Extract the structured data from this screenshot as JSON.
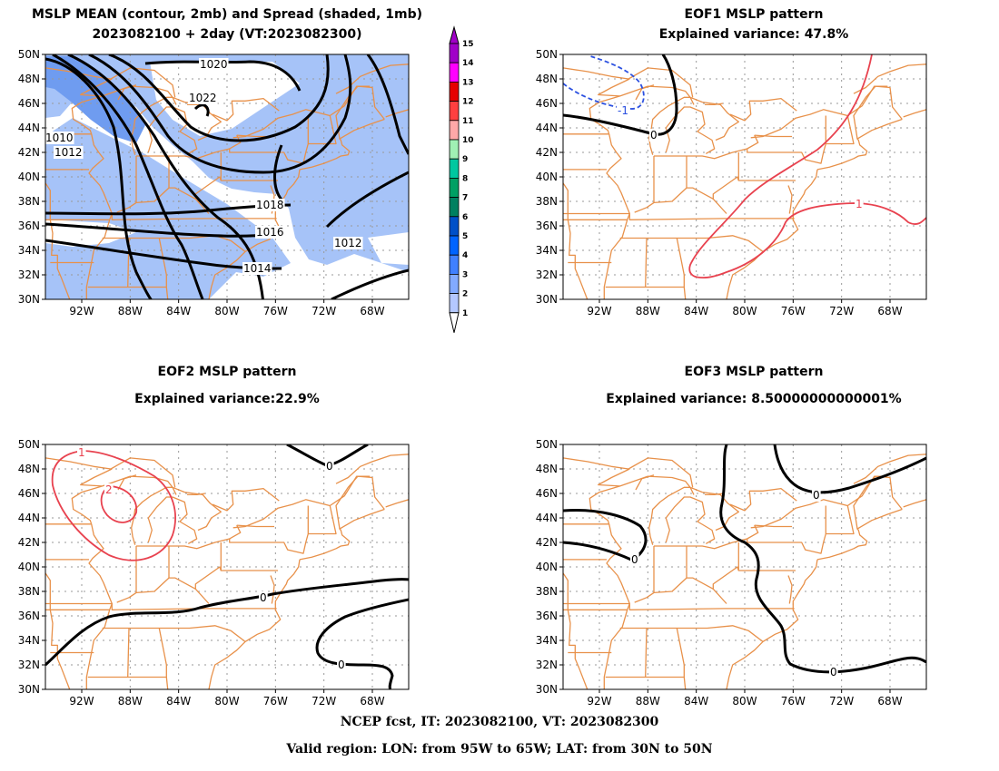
{
  "panels": {
    "p1": {
      "title_line1": "MSLP MEAN (contour, 2mb) and Spread (shaded, 1mb)",
      "title_line2": "2023082100 + 2day (VT:2023082300)",
      "contour_labels": [
        "1020",
        "1022",
        "1010",
        "1012",
        "1018",
        "1016",
        "1012",
        "1014"
      ]
    },
    "p2": {
      "title_line1": "EOF1 MSLP pattern",
      "title_line2": "Explained variance: 47.8%",
      "contour_labels": [
        "-1",
        "0",
        "1"
      ]
    },
    "p3": {
      "title_line1": "EOF2 MSLP pattern",
      "title_line2": "Explained variance:22.9%",
      "contour_labels": [
        "1",
        "2",
        "0",
        "0",
        "0"
      ]
    },
    "p4": {
      "title_line1": "EOF3 MSLP pattern",
      "title_line2": "Explained variance: 8.50000000000001%",
      "contour_labels": [
        "0",
        "0",
        "0"
      ]
    }
  },
  "axes": {
    "lat_ticks": [
      "50N",
      "48N",
      "46N",
      "44N",
      "42N",
      "40N",
      "38N",
      "36N",
      "34N",
      "32N",
      "30N"
    ],
    "lon_ticks": [
      "92W",
      "88W",
      "84W",
      "80W",
      "76W",
      "72W",
      "68W"
    ]
  },
  "colorbar": {
    "levels": [
      "15",
      "14",
      "13",
      "12",
      "11",
      "10",
      "9",
      "8",
      "7",
      "6",
      "5",
      "4",
      "3",
      "2",
      "1"
    ],
    "colors": [
      "#a000c8",
      "#ff00ff",
      "#e60000",
      "#ff4040",
      "#ffa8a8",
      "#a0f0b4",
      "#00c8a0",
      "#00a064",
      "#008060",
      "#0050c8",
      "#0064ff",
      "#4080ff",
      "#82aaff",
      "#b4c8ff"
    ]
  },
  "colors": {
    "spread_shade": "#a6c3f8",
    "spread_shade_dark": "#6f9cf0",
    "state_lines": "#e8914a",
    "grid": "#999999",
    "zero_contour": "#000000",
    "positive_contour": "#e8424f",
    "negative_contour": "#2b50e0"
  },
  "footer": {
    "line1": "NCEP fcst, IT: 2023082100, VT: 2023082300",
    "line2": "Valid region: LON: from 95W to 65W; LAT: from 30N to 50N"
  }
}
